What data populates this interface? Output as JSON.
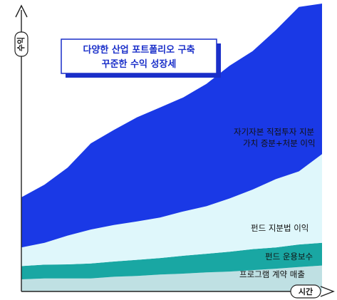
{
  "chart_data": {
    "type": "area",
    "stacked": true,
    "title_lines": [
      "다양한 산업 포트폴리오 구축",
      "꾸준한 수익 성장세"
    ],
    "xlabel": "시간",
    "ylabel": "수익",
    "x": [
      0,
      1,
      2,
      3,
      4,
      5,
      6,
      7,
      8,
      9,
      10,
      11,
      12,
      13
    ],
    "ylim": [
      0,
      100
    ],
    "series": [
      {
        "name": "프로그램 계약 매출",
        "color": "#bfe0e3",
        "values": [
          4.2,
          4.5,
          4.5,
          4.5,
          5.1,
          5.4,
          5.9,
          6.2,
          6.6,
          6.9,
          7.4,
          7.9,
          8.5,
          9.0
        ]
      },
      {
        "name": "펀드 운용보수",
        "color": "#19a7a3",
        "values": [
          4.6,
          4.8,
          4.9,
          5.2,
          5.3,
          5.6,
          5.7,
          6.2,
          6.5,
          6.9,
          7.3,
          7.4,
          7.8,
          7.9
        ]
      },
      {
        "name": "펀드 지분법 이익",
        "color": "#dff7fb",
        "values": [
          6.5,
          7.6,
          10.0,
          11.8,
          12.7,
          13.3,
          14.1,
          15.4,
          16.5,
          18.5,
          20.7,
          23.7,
          25.4,
          30.8
        ]
      },
      {
        "name": "자기자본 직접투자 지분 가치 증분+처분 이익",
        "color": "#1a39e6",
        "values": [
          17.4,
          20.2,
          23.6,
          29.9,
          33.0,
          36.2,
          38.2,
          39.6,
          42.5,
          46.1,
          48.1,
          51.8,
          57.1,
          52.3
        ]
      }
    ],
    "labels": {
      "program": "프로그램 계약 매출",
      "fee": "펀드 운용보수",
      "equity_method": "펀드 지분법 이익",
      "direct_line1": "자기자본 직접투자 지분",
      "direct_line2": "가치 증분+처분 이익"
    }
  }
}
